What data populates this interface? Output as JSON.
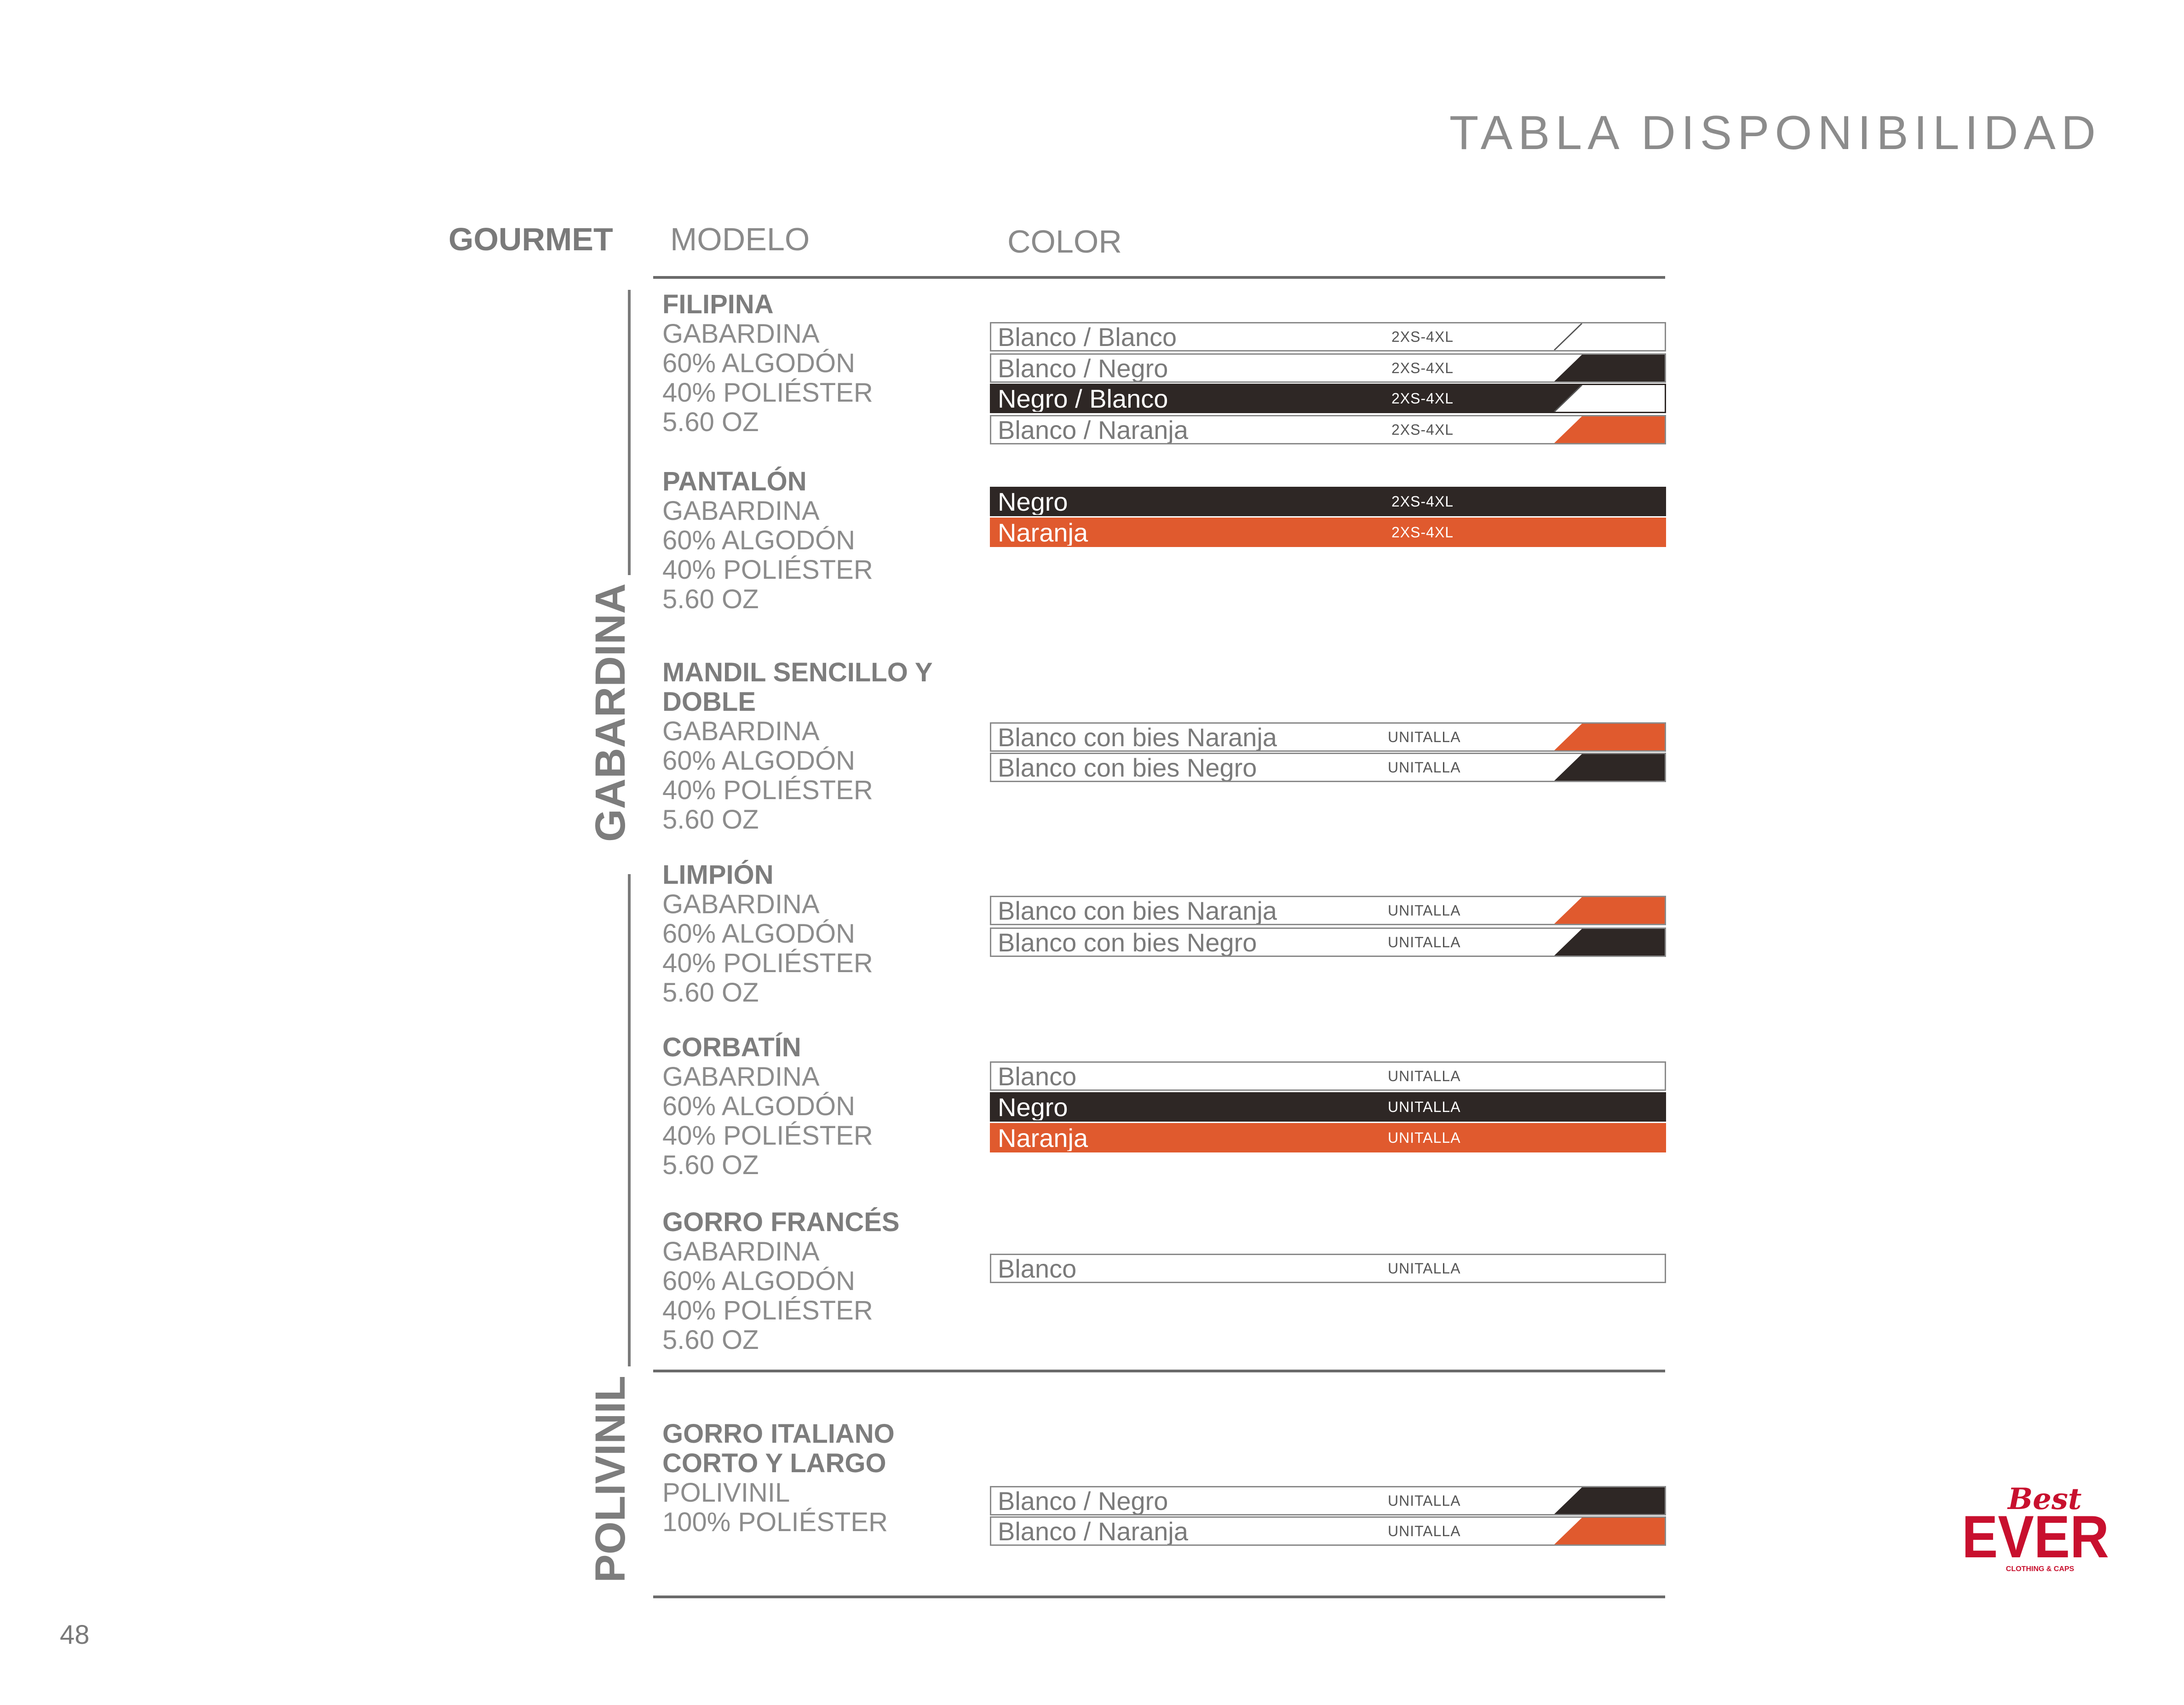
{
  "title": "TABLA DISPONIBILIDAD",
  "headers": {
    "section": "GOURMET",
    "model": "MODELO",
    "color": "COLOR"
  },
  "categories": {
    "gabardina": "GABARDINA",
    "polivinil": "POLIVINIL"
  },
  "colors": {
    "dark": "#2e2725",
    "orange": "#e05a2e",
    "border": "#8a8a8a",
    "brand": "#c8102e"
  },
  "products": [
    {
      "name": "FILIPINA",
      "specs": [
        "GABARDINA",
        "60% ALGODÓN",
        "40% POLIÉSTER",
        "5.60 OZ"
      ],
      "rows": [
        {
          "label": "Blanco / Blanco",
          "size": "2XS-4XL",
          "style": "white",
          "accent": "white"
        },
        {
          "label": "Blanco / Negro",
          "size": "2XS-4XL",
          "style": "white",
          "accent": "dark"
        },
        {
          "label": "Negro / Blanco",
          "size": "2XS-4XL",
          "style": "dark",
          "accent": "white"
        },
        {
          "label": "Blanco / Naranja",
          "size": "2XS-4XL",
          "style": "white",
          "accent": "orange"
        }
      ]
    },
    {
      "name": "PANTALÓN",
      "specs": [
        "GABARDINA",
        "60% ALGODÓN",
        "40% POLIÉSTER",
        "5.60 OZ"
      ],
      "rows": [
        {
          "label": "Negro",
          "size": "2XS-4XL",
          "style": "dark",
          "accent": "none"
        },
        {
          "label": "Naranja",
          "size": "2XS-4XL",
          "style": "orange",
          "accent": "none"
        }
      ]
    },
    {
      "name": "MANDIL SENCILLO Y DOBLE",
      "name_lines": [
        "MANDIL SENCILLO Y",
        "DOBLE"
      ],
      "specs": [
        "GABARDINA",
        "60% ALGODÓN",
        "40% POLIÉSTER",
        "5.60 OZ"
      ],
      "rows": [
        {
          "label": "Blanco con bies Naranja",
          "size": "UNITALLA",
          "style": "white",
          "accent": "orange"
        },
        {
          "label": "Blanco con bies Negro",
          "size": "UNITALLA",
          "style": "white",
          "accent": "dark"
        }
      ]
    },
    {
      "name": "LIMPIÓN",
      "specs": [
        "GABARDINA",
        "60% ALGODÓN",
        "40% POLIÉSTER",
        "5.60 OZ"
      ],
      "rows": [
        {
          "label": "Blanco con bies Naranja",
          "size": "UNITALLA",
          "style": "white",
          "accent": "orange"
        },
        {
          "label": "Blanco con bies Negro",
          "size": "UNITALLA",
          "style": "white",
          "accent": "dark"
        }
      ]
    },
    {
      "name": "CORBATÍN",
      "specs": [
        "GABARDINA",
        "60% ALGODÓN",
        "40% POLIÉSTER",
        "5.60 OZ"
      ],
      "rows": [
        {
          "label": "Blanco",
          "size": "UNITALLA",
          "style": "white",
          "accent": "none"
        },
        {
          "label": "Negro",
          "size": "UNITALLA",
          "style": "dark",
          "accent": "none"
        },
        {
          "label": "Naranja",
          "size": "UNITALLA",
          "style": "orange",
          "accent": "none"
        }
      ]
    },
    {
      "name": "GORRO FRANCÉS",
      "specs": [
        "GABARDINA",
        "60% ALGODÓN",
        "40% POLIÉSTER",
        "5.60 OZ"
      ],
      "rows": [
        {
          "label": "Blanco",
          "size": "UNITALLA",
          "style": "white",
          "accent": "none"
        }
      ]
    },
    {
      "name": "GORRO ITALIANO CORTO Y LARGO",
      "name_lines": [
        "GORRO ITALIANO",
        "CORTO Y LARGO"
      ],
      "specs": [
        "POLIVINIL",
        "100% POLIÉSTER"
      ],
      "rows": [
        {
          "label": "Blanco / Negro",
          "size": "UNITALLA",
          "style": "white",
          "accent": "dark"
        },
        {
          "label": "Blanco / Naranja",
          "size": "UNITALLA",
          "style": "white",
          "accent": "orange"
        }
      ]
    }
  ],
  "page_number": "48",
  "logo": {
    "script": "Best",
    "word": "EVER",
    "tagline": "CLOTHING & CAPS"
  }
}
